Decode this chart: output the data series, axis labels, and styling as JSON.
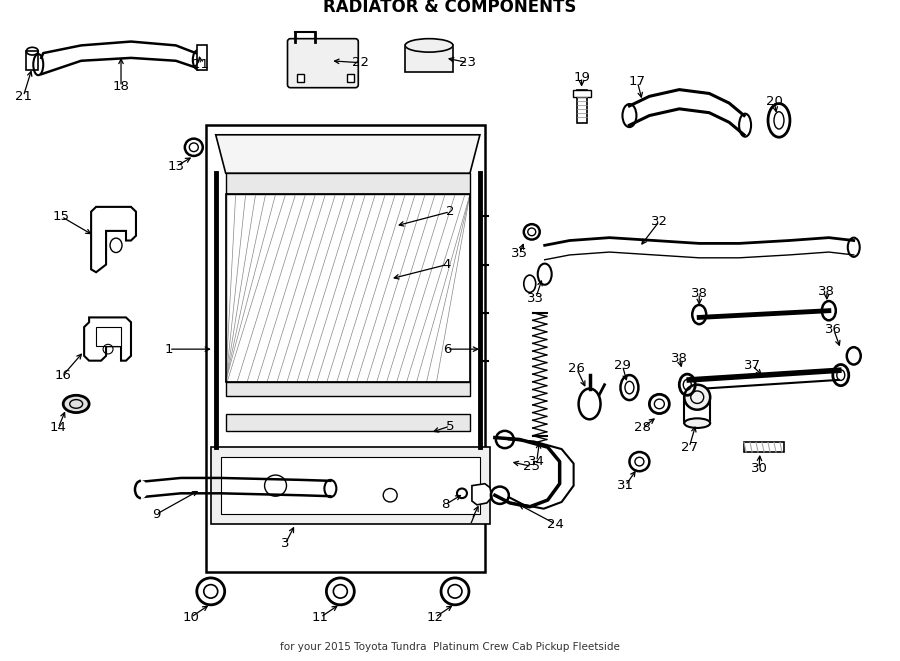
{
  "title": "RADIATOR & COMPONENTS",
  "subtitle": "for your 2015 Toyota Tundra  Platinum Crew Cab Pickup Fleetside",
  "bg_color": "#ffffff",
  "line_color": "#000000",
  "fig_width": 9.0,
  "fig_height": 6.61,
  "dpi": 100
}
